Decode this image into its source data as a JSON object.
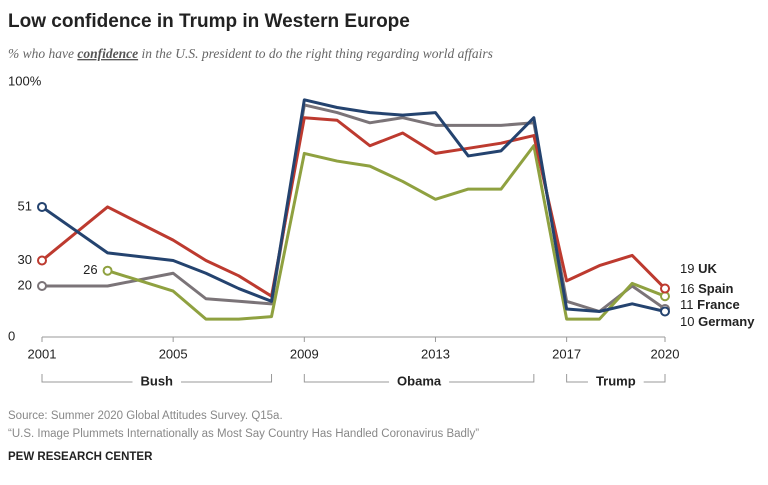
{
  "chart_data": {
    "type": "line",
    "title": "Low confidence in Trump in Western Europe",
    "subtitle": [
      "% who have ",
      "confidence",
      " in the U.S. president to do the right thing regarding world affairs"
    ],
    "x": [
      2001,
      2003,
      2005,
      2006,
      2007,
      2008,
      2009,
      2010,
      2011,
      2012,
      2013,
      2014,
      2015,
      2016,
      2017,
      2018,
      2019,
      2020
    ],
    "xlim": [
      2001,
      2020
    ],
    "xticks": [
      2001,
      2005,
      2009,
      2013,
      2017,
      2020
    ],
    "ylim": [
      0,
      100
    ],
    "yticks": [
      0,
      {
        "value": 100,
        "label": "100%"
      }
    ],
    "series": [
      {
        "name": "France",
        "color": "#7b7478",
        "values": [
          20,
          20,
          25,
          15,
          14,
          13,
          91,
          88,
          84,
          86,
          83,
          83,
          83,
          84,
          14,
          10,
          20,
          11
        ]
      },
      {
        "name": "Spain",
        "color": "#8fa140",
        "values": [
          null,
          26,
          18,
          7,
          7,
          8,
          72,
          69,
          67,
          61,
          54,
          58,
          58,
          75,
          7,
          7,
          21,
          16
        ]
      },
      {
        "name": "UK",
        "color": "#bd3a2f",
        "values": [
          30,
          51,
          38,
          30,
          24,
          16,
          86,
          85,
          75,
          80,
          72,
          74,
          76,
          79,
          22,
          28,
          32,
          19
        ]
      },
      {
        "name": "Germany",
        "color": "#24436f",
        "values": [
          51,
          33,
          30,
          25,
          19,
          14,
          93,
          90,
          88,
          87,
          88,
          71,
          73,
          86,
          11,
          10,
          13,
          10
        ]
      }
    ],
    "periods": [
      {
        "label": "Bush",
        "start": 2001,
        "end": 2008
      },
      {
        "label": "Obama",
        "start": 2009,
        "end": 2016
      },
      {
        "label": "Trump",
        "start": 2017,
        "end": 2020
      }
    ],
    "source": [
      "Source: Summer 2020 Global Attitudes Survey. Q15a.",
      "“U.S. Image Plummets Internationally as Most Say Country Has Handled Coronavirus Badly”"
    ],
    "credit": "PEW RESEARCH CENTER"
  }
}
